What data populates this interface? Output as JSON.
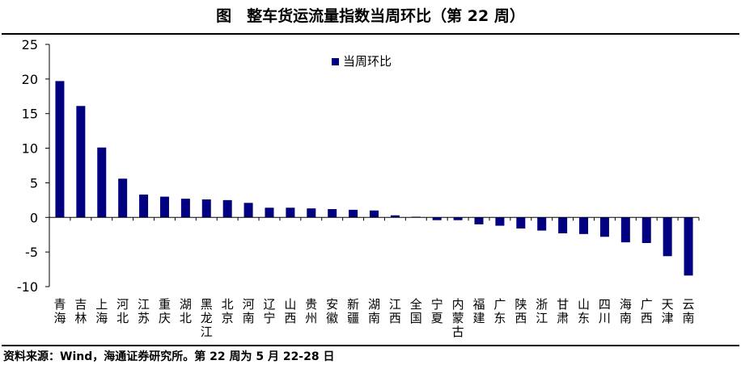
{
  "title": "图　整车货运流量指数当周环比（第 22 周）",
  "source": "资料来源：Wind，海通证券研究所。第 22 周为 5 月 22-28 日",
  "colors": {
    "bar": "#000080",
    "axis": "#000000",
    "text": "#000000"
  },
  "chart_data": {
    "type": "bar",
    "title": "",
    "xlabel": "",
    "ylabel": "",
    "ylim": [
      -10,
      25
    ],
    "yticks": [
      -10,
      -5,
      0,
      5,
      10,
      15,
      20,
      25
    ],
    "ytick_labels": [
      "-10",
      "-5",
      "0",
      "5",
      "10",
      "15",
      "20",
      "25"
    ],
    "grid": false,
    "legend_position": "top-center",
    "categories": [
      "青海",
      "吉林",
      "上海",
      "河北",
      "江苏",
      "重庆",
      "湖北",
      "黑龙江",
      "北京",
      "河南",
      "辽宁",
      "山西",
      "贵州",
      "安徽",
      "新疆",
      "湖南",
      "江西",
      "全国",
      "宁夏",
      "内蒙古",
      "福建",
      "广东",
      "陕西",
      "浙江",
      "甘肃",
      "山东",
      "四川",
      "海南",
      "广西",
      "天津",
      "云南"
    ],
    "series": [
      {
        "name": "当周环比",
        "values": [
          19.7,
          16.1,
          10.1,
          5.6,
          3.3,
          3.0,
          2.7,
          2.6,
          2.5,
          2.1,
          1.4,
          1.4,
          1.3,
          1.2,
          1.1,
          1.0,
          0.3,
          0.1,
          -0.4,
          -0.4,
          -1.0,
          -1.2,
          -1.6,
          -1.9,
          -2.3,
          -2.4,
          -2.8,
          -3.6,
          -3.7,
          -5.6,
          -8.4
        ]
      }
    ]
  }
}
